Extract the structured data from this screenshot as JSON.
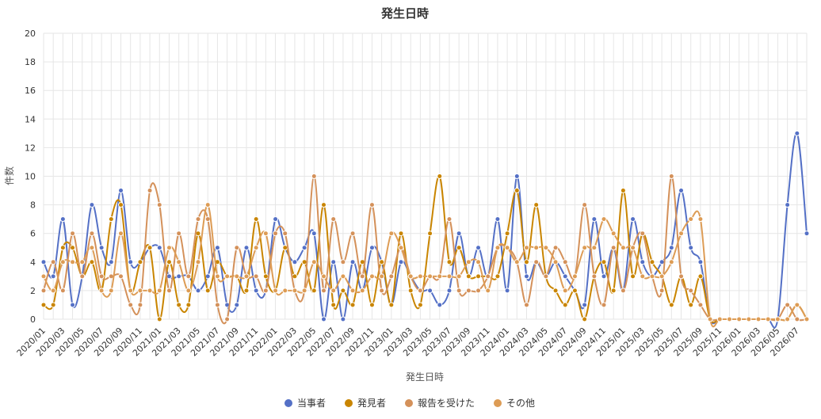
{
  "chart_data": {
    "type": "line",
    "title": "発生日時",
    "xlabel": "発生日時",
    "ylabel": "件数",
    "ylim": [
      0,
      20
    ],
    "y_ticks": [
      0,
      2,
      4,
      6,
      8,
      10,
      12,
      14,
      16,
      18,
      20
    ],
    "grid": true,
    "legend_position": "bottom",
    "categories": [
      "2020/01",
      "2020/02",
      "2020/03",
      "2020/04",
      "2020/05",
      "2020/06",
      "2020/07",
      "2020/08",
      "2020/09",
      "2020/10",
      "2020/11",
      "2020/12",
      "2021/01",
      "2021/02",
      "2021/03",
      "2021/04",
      "2021/05",
      "2021/06",
      "2021/07",
      "2021/08",
      "2021/09",
      "2021/10",
      "2021/11",
      "2021/12",
      "2022/01",
      "2022/02",
      "2022/03",
      "2022/04",
      "2022/05",
      "2022/06",
      "2022/07",
      "2022/08",
      "2022/09",
      "2022/10",
      "2022/11",
      "2022/12",
      "2023/01",
      "2023/02",
      "2023/03",
      "2023/04",
      "2023/05",
      "2023/06",
      "2023/07",
      "2023/08",
      "2023/09",
      "2023/10",
      "2023/11",
      "2023/12",
      "2024/01",
      "2024/02",
      "2024/03",
      "2024/04",
      "2024/05",
      "2024/06",
      "2024/07",
      "2024/08",
      "2024/09",
      "2024/10",
      "2024/11",
      "2024/12",
      "2025/01",
      "2025/02",
      "2025/03",
      "2025/04",
      "2025/05",
      "2025/06",
      "2025/07",
      "2025/08",
      "2025/09",
      "2025/10",
      "2025/11",
      "2025/12",
      "2026/01",
      "2026/02",
      "2026/03",
      "2026/04",
      "2026/05",
      "2026/06",
      "2026/07",
      "2026/08"
    ],
    "tick_labels": [
      "2020/01",
      "2020/03",
      "2020/05",
      "2020/07",
      "2020/09",
      "2020/11",
      "2021/01",
      "2021/03",
      "2021/05",
      "2021/07",
      "2021/09",
      "2021/11",
      "2022/01",
      "2022/03",
      "2022/05",
      "2022/07",
      "2022/09",
      "2022/11",
      "2023/01",
      "2023/03",
      "2023/05",
      "2023/07",
      "2023/09",
      "2023/11",
      "2024/01",
      "2024/03",
      "2024/05",
      "2024/07",
      "2024/09",
      "2024/11",
      "2025/01",
      "2025/03",
      "2025/05",
      "2025/07",
      "2025/09",
      "2025/11",
      "2026/01",
      "2026/03",
      "2026/05",
      "2026/07"
    ],
    "series": [
      {
        "name": "当事者",
        "color": "#5470c6",
        "values": [
          4,
          3,
          7,
          1,
          3,
          8,
          5,
          4,
          9,
          4,
          4,
          5,
          5,
          3,
          3,
          3,
          2,
          3,
          5,
          1,
          1,
          5,
          2,
          2,
          7,
          5,
          4,
          5,
          6,
          0,
          4,
          0,
          4,
          2,
          5,
          4,
          1,
          4,
          3,
          2,
          2,
          1,
          2,
          6,
          3,
          5,
          3,
          7,
          2,
          10,
          3,
          4,
          3,
          4,
          3,
          2,
          1,
          7,
          3,
          5,
          2,
          7,
          4,
          3,
          4,
          5,
          9,
          5,
          4,
          0,
          0,
          0,
          0,
          0,
          0,
          0,
          0,
          8,
          13,
          6
        ]
      },
      {
        "name": "発見者",
        "color": "#c98500",
        "values": [
          1,
          1,
          5,
          5,
          3,
          4,
          2,
          7,
          8,
          2,
          4,
          5,
          0,
          4,
          1,
          1,
          6,
          2,
          4,
          3,
          3,
          2,
          7,
          3,
          2,
          5,
          3,
          4,
          2,
          8,
          1,
          2,
          1,
          4,
          1,
          4,
          1,
          6,
          2,
          1,
          6,
          10,
          4,
          5,
          3,
          3,
          3,
          3,
          6,
          9,
          4,
          8,
          3,
          2,
          1,
          2,
          0,
          3,
          4,
          2,
          9,
          3,
          6,
          4,
          3,
          1,
          3,
          1,
          3,
          0,
          0,
          0,
          0,
          0,
          0,
          0,
          0,
          0,
          1,
          0
        ]
      },
      {
        "name": "報告を受けた",
        "color": "#d4915a",
        "values": [
          2,
          4,
          2,
          6,
          3,
          6,
          3,
          3,
          3,
          1,
          1,
          9,
          8,
          2,
          6,
          3,
          7,
          7,
          1,
          0,
          5,
          3,
          3,
          2,
          6,
          6,
          2,
          2,
          10,
          2,
          7,
          4,
          6,
          3,
          8,
          2,
          3,
          5,
          3,
          2,
          3,
          3,
          7,
          2,
          2,
          2,
          3,
          5,
          5,
          4,
          1,
          4,
          3,
          5,
          4,
          3,
          8,
          3,
          1,
          5,
          2,
          5,
          6,
          3,
          2,
          10,
          3,
          2,
          1,
          0,
          0,
          0,
          0,
          0,
          0,
          0,
          0,
          1,
          0,
          0
        ]
      },
      {
        "name": "その他",
        "color": "#dd9c55",
        "values": [
          3,
          2,
          4,
          4,
          4,
          5,
          2,
          2,
          6,
          2,
          2,
          2,
          2,
          5,
          4,
          2,
          4,
          8,
          3,
          3,
          3,
          3,
          5,
          6,
          2,
          2,
          2,
          2,
          4,
          3,
          2,
          3,
          2,
          2,
          3,
          3,
          6,
          5,
          3,
          3,
          3,
          3,
          3,
          3,
          4,
          4,
          2,
          5,
          5,
          4,
          5,
          5,
          5,
          4,
          2,
          3,
          5,
          5,
          7,
          6,
          5,
          5,
          3,
          3,
          3,
          4,
          6,
          7,
          7,
          0,
          0,
          0,
          0,
          0,
          0,
          0,
          0,
          0,
          1,
          0
        ]
      }
    ]
  }
}
